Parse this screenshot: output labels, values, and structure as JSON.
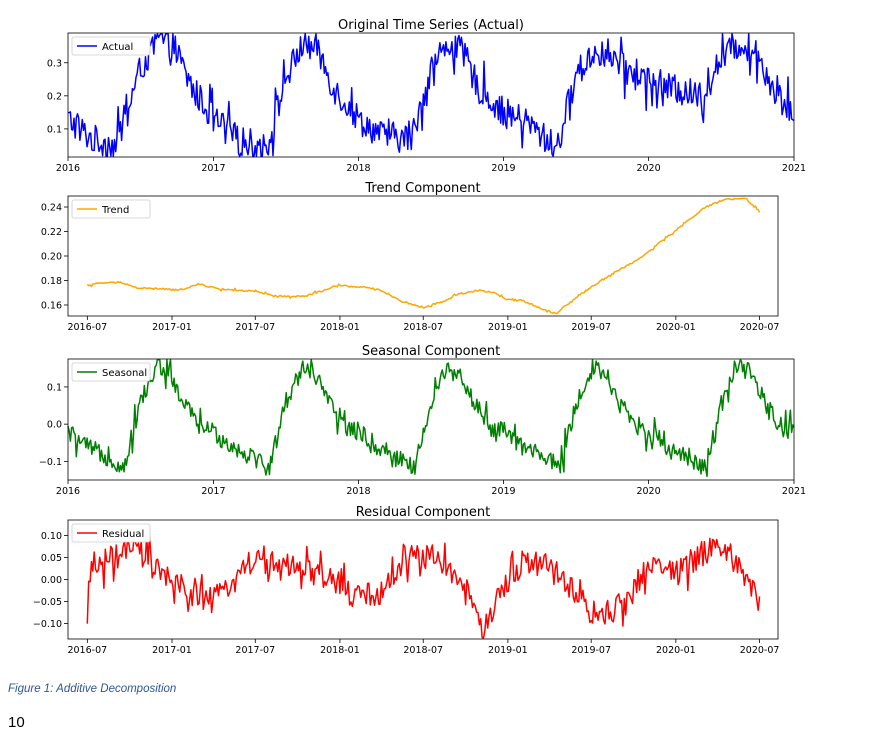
{
  "figure": {
    "caption": "Figure 1: Additive Decomposition",
    "page_number": "10"
  },
  "chart_data": [
    {
      "type": "line",
      "title": "Original Time Series (Actual)",
      "xlabel": "",
      "ylabel": "",
      "x_ticks": [
        "2016",
        "2017",
        "2018",
        "2019",
        "2020",
        "2021"
      ],
      "x_range": [
        "2016-01-01",
        "2021-01-01"
      ],
      "y_ticks": [
        "0.1",
        "0.2",
        "0.3"
      ],
      "ylim": [
        0.015,
        0.39
      ],
      "grid": false,
      "legend": "top-left",
      "series": [
        {
          "name": "Actual",
          "color": "#0000ff",
          "period_days": 366,
          "noise": 0.045,
          "points": [
            {
              "x": "2016-01-01",
              "y": 0.13
            },
            {
              "x": "2016-03-01",
              "y": 0.07
            },
            {
              "x": "2016-05-01",
              "y": 0.05
            },
            {
              "x": "2016-07-01",
              "y": 0.28
            },
            {
              "x": "2016-08-15",
              "y": 0.37
            },
            {
              "x": "2016-09-20",
              "y": 0.36
            },
            {
              "x": "2016-11-01",
              "y": 0.24
            },
            {
              "x": "2017-01-01",
              "y": 0.13
            },
            {
              "x": "2017-03-01",
              "y": 0.07
            },
            {
              "x": "2017-05-15",
              "y": 0.04
            },
            {
              "x": "2017-07-01",
              "y": 0.25
            },
            {
              "x": "2017-08-15",
              "y": 0.36
            },
            {
              "x": "2017-09-20",
              "y": 0.34
            },
            {
              "x": "2017-11-01",
              "y": 0.22
            },
            {
              "x": "2018-01-01",
              "y": 0.13
            },
            {
              "x": "2018-03-01",
              "y": 0.08
            },
            {
              "x": "2018-05-15",
              "y": 0.07
            },
            {
              "x": "2018-07-01",
              "y": 0.28
            },
            {
              "x": "2018-08-15",
              "y": 0.36
            },
            {
              "x": "2018-09-20",
              "y": 0.33
            },
            {
              "x": "2018-11-01",
              "y": 0.22
            },
            {
              "x": "2019-01-01",
              "y": 0.15
            },
            {
              "x": "2019-03-01",
              "y": 0.12
            },
            {
              "x": "2019-05-15",
              "y": 0.04
            },
            {
              "x": "2019-07-01",
              "y": 0.26
            },
            {
              "x": "2019-08-15",
              "y": 0.33
            },
            {
              "x": "2019-09-20",
              "y": 0.33
            },
            {
              "x": "2019-11-01",
              "y": 0.28
            },
            {
              "x": "2020-01-01",
              "y": 0.25
            },
            {
              "x": "2020-03-01",
              "y": 0.22
            },
            {
              "x": "2020-05-15",
              "y": 0.2
            },
            {
              "x": "2020-07-01",
              "y": 0.31
            },
            {
              "x": "2020-08-20",
              "y": 0.36
            },
            {
              "x": "2020-10-01",
              "y": 0.33
            },
            {
              "x": "2020-11-15",
              "y": 0.21
            },
            {
              "x": "2020-12-31",
              "y": 0.14
            }
          ]
        }
      ]
    },
    {
      "type": "line",
      "title": "Trend Component",
      "xlabel": "",
      "ylabel": "",
      "x_ticks": [
        "2016-07",
        "2017-01",
        "2017-07",
        "2018-01",
        "2018-07",
        "2019-01",
        "2019-07",
        "2020-01",
        "2020-07"
      ],
      "x_range": [
        "2016-05-20",
        "2020-08-10"
      ],
      "y_ticks": [
        "0.16",
        "0.18",
        "0.20",
        "0.22",
        "0.24"
      ],
      "ylim": [
        0.151,
        0.249
      ],
      "grid": false,
      "legend": "top-left",
      "series": [
        {
          "name": "Trend",
          "color": "#ffa500",
          "period_days": 0,
          "noise": 0.0007,
          "points": [
            {
              "x": "2016-07-01",
              "y": 0.176
            },
            {
              "x": "2016-08-01",
              "y": 0.178
            },
            {
              "x": "2016-09-15",
              "y": 0.1785
            },
            {
              "x": "2016-10-15",
              "y": 0.174
            },
            {
              "x": "2016-12-15",
              "y": 0.173
            },
            {
              "x": "2017-01-15",
              "y": 0.172
            },
            {
              "x": "2017-03-01",
              "y": 0.177
            },
            {
              "x": "2017-04-15",
              "y": 0.173
            },
            {
              "x": "2017-07-01",
              "y": 0.171
            },
            {
              "x": "2017-08-15",
              "y": 0.167
            },
            {
              "x": "2017-10-15",
              "y": 0.167
            },
            {
              "x": "2018-01-01",
              "y": 0.176
            },
            {
              "x": "2018-03-01",
              "y": 0.174
            },
            {
              "x": "2018-04-01",
              "y": 0.172
            },
            {
              "x": "2018-05-15",
              "y": 0.163
            },
            {
              "x": "2018-07-01",
              "y": 0.158
            },
            {
              "x": "2018-08-15",
              "y": 0.163
            },
            {
              "x": "2018-09-15",
              "y": 0.169
            },
            {
              "x": "2018-11-01",
              "y": 0.172
            },
            {
              "x": "2018-12-01",
              "y": 0.17
            },
            {
              "x": "2019-01-01",
              "y": 0.164
            },
            {
              "x": "2019-02-01",
              "y": 0.164
            },
            {
              "x": "2019-03-15",
              "y": 0.157
            },
            {
              "x": "2019-04-15",
              "y": 0.153
            },
            {
              "x": "2019-06-01",
              "y": 0.167
            },
            {
              "x": "2019-07-15",
              "y": 0.178
            },
            {
              "x": "2019-09-01",
              "y": 0.189
            },
            {
              "x": "2019-10-15",
              "y": 0.198
            },
            {
              "x": "2019-12-01",
              "y": 0.212
            },
            {
              "x": "2020-01-15",
              "y": 0.225
            },
            {
              "x": "2020-03-01",
              "y": 0.239
            },
            {
              "x": "2020-04-15",
              "y": 0.246
            },
            {
              "x": "2020-06-01",
              "y": 0.247
            },
            {
              "x": "2020-07-01",
              "y": 0.236
            }
          ]
        }
      ]
    },
    {
      "type": "line",
      "title": "Seasonal Component",
      "xlabel": "",
      "ylabel": "",
      "x_ticks": [
        "2016",
        "2017",
        "2018",
        "2019",
        "2020",
        "2021"
      ],
      "x_range": [
        "2016-01-01",
        "2021-01-01"
      ],
      "y_ticks": [
        "0.1",
        "0.0",
        "−0.1"
      ],
      "ylim": [
        -0.15,
        0.175
      ],
      "grid": false,
      "legend": "top-left",
      "series": [
        {
          "name": "Seasonal",
          "color": "#008000",
          "period_days": 366,
          "noise": 0.025,
          "points": [
            {
              "x": "2016-01-01",
              "y": -0.02
            },
            {
              "x": "2016-02-15",
              "y": -0.06
            },
            {
              "x": "2016-04-15",
              "y": -0.09
            },
            {
              "x": "2016-05-20",
              "y": -0.12
            },
            {
              "x": "2016-07-01",
              "y": 0.06
            },
            {
              "x": "2016-08-15",
              "y": 0.16
            },
            {
              "x": "2016-09-15",
              "y": 0.13
            },
            {
              "x": "2016-10-15",
              "y": 0.06
            },
            {
              "x": "2016-12-01",
              "y": -0.01
            },
            {
              "x": "2017-01-01",
              "y": -0.02
            }
          ]
        }
      ]
    },
    {
      "type": "line",
      "title": "Residual Component",
      "xlabel": "",
      "ylabel": "",
      "x_ticks": [
        "2016-07",
        "2017-01",
        "2017-07",
        "2018-01",
        "2018-07",
        "2019-01",
        "2019-07",
        "2020-01",
        "2020-07"
      ],
      "x_range": [
        "2016-05-20",
        "2020-08-10"
      ],
      "y_ticks": [
        "0.10",
        "0.05",
        "0.00",
        "−0.05",
        "−0.10"
      ],
      "ylim": [
        -0.135,
        0.135
      ],
      "grid": false,
      "legend": "top-left",
      "series": [
        {
          "name": "Residual",
          "color": "#ff0000",
          "period_days": 0,
          "noise": 0.03,
          "points": [
            {
              "x": "2016-07-01",
              "y": -0.12
            },
            {
              "x": "2016-07-10",
              "y": 0.03
            },
            {
              "x": "2016-09-01",
              "y": 0.05
            },
            {
              "x": "2016-10-15",
              "y": 0.07
            },
            {
              "x": "2016-12-01",
              "y": 0.02
            },
            {
              "x": "2017-01-15",
              "y": -0.02
            },
            {
              "x": "2017-04-01",
              "y": -0.05
            },
            {
              "x": "2017-06-15",
              "y": 0.04
            },
            {
              "x": "2017-08-01",
              "y": 0.04
            },
            {
              "x": "2017-10-01",
              "y": 0.02
            },
            {
              "x": "2017-12-15",
              "y": 0.0
            },
            {
              "x": "2018-02-01",
              "y": -0.04
            },
            {
              "x": "2018-04-01",
              "y": -0.03
            },
            {
              "x": "2018-06-01",
              "y": 0.06
            },
            {
              "x": "2018-08-01",
              "y": 0.05
            },
            {
              "x": "2018-10-01",
              "y": -0.02
            },
            {
              "x": "2018-11-01",
              "y": -0.11
            },
            {
              "x": "2018-12-15",
              "y": -0.04
            },
            {
              "x": "2019-02-01",
              "y": 0.04
            },
            {
              "x": "2019-04-01",
              "y": 0.03
            },
            {
              "x": "2019-05-15",
              "y": -0.02
            },
            {
              "x": "2019-07-15",
              "y": -0.09
            },
            {
              "x": "2019-09-15",
              "y": -0.05
            },
            {
              "x": "2019-11-01",
              "y": 0.03
            },
            {
              "x": "2020-01-01",
              "y": 0.02
            },
            {
              "x": "2020-03-01",
              "y": 0.06
            },
            {
              "x": "2020-04-15",
              "y": 0.07
            },
            {
              "x": "2020-06-01",
              "y": 0.01
            },
            {
              "x": "2020-07-01",
              "y": -0.06
            }
          ]
        }
      ]
    }
  ]
}
